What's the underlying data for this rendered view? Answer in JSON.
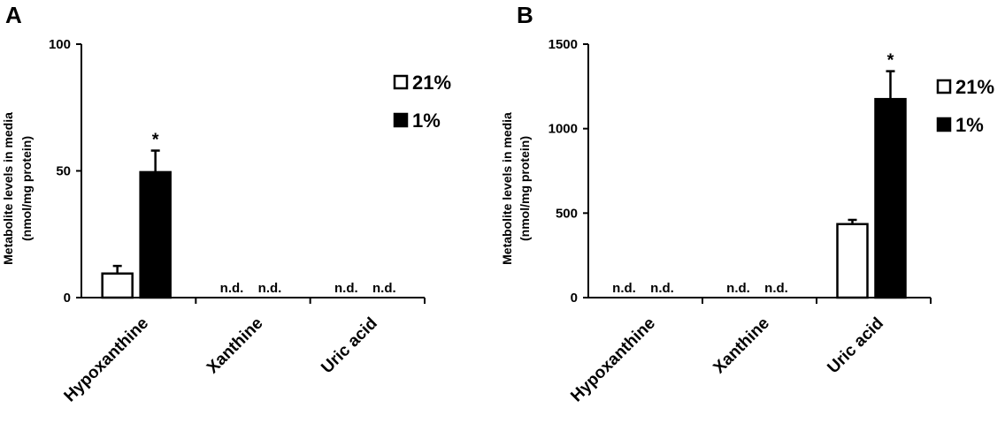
{
  "chart_data": [
    {
      "panel": "A",
      "type": "bar",
      "categories": [
        "Hypoxanthine",
        "Xanthine",
        "Uric acid"
      ],
      "ylabel": [
        "Metabolite levels in media",
        "(nmol/mg protein)"
      ],
      "ylim": [
        0,
        100
      ],
      "yticks": [
        "0",
        "50",
        "100"
      ],
      "ytick_values": [
        0,
        50,
        100
      ],
      "series": [
        {
          "name": "21%",
          "fill": "#ffffff",
          "values": [
            9.5,
            null,
            null
          ],
          "errors": [
            3.0,
            null,
            null
          ],
          "labels": [
            "",
            "n.d.",
            "n.d."
          ],
          "sig": [
            "",
            "",
            ""
          ]
        },
        {
          "name": "1%",
          "fill": "#000000",
          "values": [
            49.5,
            null,
            null
          ],
          "errors": [
            8.5,
            null,
            null
          ],
          "labels": [
            "",
            "n.d.",
            "n.d."
          ],
          "sig": [
            "*",
            "",
            ""
          ]
        }
      ]
    },
    {
      "panel": "B",
      "type": "bar",
      "categories": [
        "Hypoxanthine",
        "Xanthine",
        "Uric acid"
      ],
      "ylabel": [
        "Metabolite levels in media",
        "(nmol/mg protein)"
      ],
      "ylim": [
        0,
        1500
      ],
      "yticks": [
        "0",
        "500",
        "1000",
        "1500"
      ],
      "ytick_values": [
        0,
        500,
        1000,
        1500
      ],
      "series": [
        {
          "name": "21%",
          "fill": "#ffffff",
          "values": [
            null,
            null,
            435
          ],
          "errors": [
            null,
            null,
            25
          ],
          "labels": [
            "n.d.",
            "n.d.",
            ""
          ],
          "sig": [
            "",
            "",
            ""
          ]
        },
        {
          "name": "1%",
          "fill": "#000000",
          "values": [
            null,
            null,
            1175
          ],
          "errors": [
            null,
            null,
            165
          ],
          "labels": [
            "n.d.",
            "n.d.",
            ""
          ],
          "sig": [
            "",
            "",
            "*"
          ]
        }
      ]
    }
  ]
}
